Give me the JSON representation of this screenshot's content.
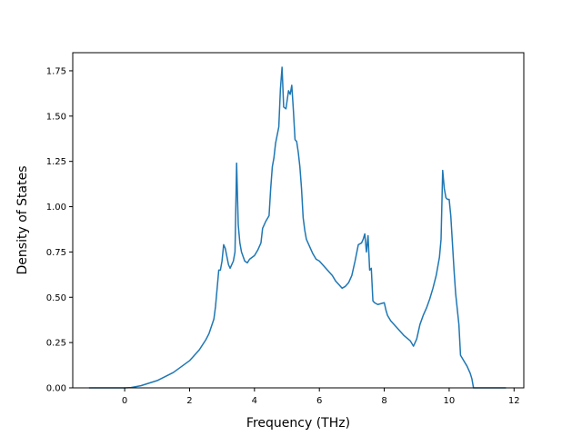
{
  "chart_data": {
    "type": "line",
    "title": "",
    "xlabel": "Frequency (THz)",
    "ylabel": "Density of States",
    "xlim": [
      -1.6,
      12.3
    ],
    "ylim": [
      0.0,
      1.85
    ],
    "xticks": [
      0,
      2,
      4,
      6,
      8,
      10,
      12
    ],
    "xtick_labels": [
      "0",
      "2",
      "4",
      "6",
      "8",
      "10",
      "12"
    ],
    "yticks": [
      0.0,
      0.25,
      0.5,
      0.75,
      1.0,
      1.25,
      1.5,
      1.75
    ],
    "ytick_labels": [
      "0.00",
      "0.25",
      "0.50",
      "0.75",
      "1.00",
      "1.25",
      "1.50",
      "1.75"
    ],
    "grid": false,
    "legend": false,
    "series": [
      {
        "color": "#1f77b4",
        "points": [
          [
            -1.1,
            0.0
          ],
          [
            0.0,
            0.0
          ],
          [
            0.2,
            0.002
          ],
          [
            0.5,
            0.012
          ],
          [
            1.0,
            0.04
          ],
          [
            1.5,
            0.085
          ],
          [
            2.0,
            0.15
          ],
          [
            2.3,
            0.21
          ],
          [
            2.5,
            0.265
          ],
          [
            2.6,
            0.3
          ],
          [
            2.75,
            0.38
          ],
          [
            2.8,
            0.45
          ],
          [
            2.85,
            0.55
          ],
          [
            2.9,
            0.65
          ],
          [
            2.95,
            0.65
          ],
          [
            3.0,
            0.7
          ],
          [
            3.05,
            0.79
          ],
          [
            3.1,
            0.77
          ],
          [
            3.2,
            0.68
          ],
          [
            3.25,
            0.66
          ],
          [
            3.35,
            0.7
          ],
          [
            3.4,
            0.75
          ],
          [
            3.45,
            1.24
          ],
          [
            3.5,
            0.9
          ],
          [
            3.55,
            0.8
          ],
          [
            3.6,
            0.75
          ],
          [
            3.7,
            0.7
          ],
          [
            3.78,
            0.69
          ],
          [
            3.85,
            0.71
          ],
          [
            4.0,
            0.73
          ],
          [
            4.1,
            0.76
          ],
          [
            4.15,
            0.78
          ],
          [
            4.2,
            0.8
          ],
          [
            4.25,
            0.88
          ],
          [
            4.35,
            0.92
          ],
          [
            4.45,
            0.95
          ],
          [
            4.5,
            1.1
          ],
          [
            4.55,
            1.22
          ],
          [
            4.6,
            1.27
          ],
          [
            4.65,
            1.35
          ],
          [
            4.75,
            1.44
          ],
          [
            4.8,
            1.65
          ],
          [
            4.85,
            1.77
          ],
          [
            4.9,
            1.55
          ],
          [
            4.97,
            1.54
          ],
          [
            5.05,
            1.64
          ],
          [
            5.1,
            1.62
          ],
          [
            5.15,
            1.67
          ],
          [
            5.2,
            1.53
          ],
          [
            5.25,
            1.37
          ],
          [
            5.3,
            1.36
          ],
          [
            5.35,
            1.3
          ],
          [
            5.4,
            1.22
          ],
          [
            5.45,
            1.1
          ],
          [
            5.5,
            0.94
          ],
          [
            5.55,
            0.87
          ],
          [
            5.6,
            0.82
          ],
          [
            5.7,
            0.78
          ],
          [
            5.8,
            0.74
          ],
          [
            5.9,
            0.71
          ],
          [
            6.0,
            0.7
          ],
          [
            6.2,
            0.66
          ],
          [
            6.4,
            0.62
          ],
          [
            6.5,
            0.59
          ],
          [
            6.6,
            0.57
          ],
          [
            6.7,
            0.55
          ],
          [
            6.8,
            0.56
          ],
          [
            6.9,
            0.58
          ],
          [
            7.0,
            0.62
          ],
          [
            7.1,
            0.7
          ],
          [
            7.2,
            0.79
          ],
          [
            7.3,
            0.8
          ],
          [
            7.35,
            0.82
          ],
          [
            7.4,
            0.85
          ],
          [
            7.45,
            0.75
          ],
          [
            7.5,
            0.84
          ],
          [
            7.55,
            0.65
          ],
          [
            7.6,
            0.66
          ],
          [
            7.65,
            0.48
          ],
          [
            7.7,
            0.47
          ],
          [
            7.8,
            0.46
          ],
          [
            8.0,
            0.47
          ],
          [
            8.05,
            0.43
          ],
          [
            8.1,
            0.4
          ],
          [
            8.2,
            0.37
          ],
          [
            8.4,
            0.33
          ],
          [
            8.6,
            0.29
          ],
          [
            8.8,
            0.26
          ],
          [
            8.9,
            0.23
          ],
          [
            9.0,
            0.27
          ],
          [
            9.1,
            0.35
          ],
          [
            9.2,
            0.4
          ],
          [
            9.3,
            0.44
          ],
          [
            9.4,
            0.49
          ],
          [
            9.5,
            0.55
          ],
          [
            9.6,
            0.62
          ],
          [
            9.7,
            0.72
          ],
          [
            9.75,
            0.82
          ],
          [
            9.8,
            1.2
          ],
          [
            9.85,
            1.1
          ],
          [
            9.9,
            1.05
          ],
          [
            9.95,
            1.04
          ],
          [
            10.0,
            1.04
          ],
          [
            10.05,
            0.95
          ],
          [
            10.1,
            0.8
          ],
          [
            10.15,
            0.65
          ],
          [
            10.2,
            0.52
          ],
          [
            10.3,
            0.35
          ],
          [
            10.35,
            0.18
          ],
          [
            10.45,
            0.15
          ],
          [
            10.55,
            0.12
          ],
          [
            10.65,
            0.08
          ],
          [
            10.7,
            0.05
          ],
          [
            10.75,
            0.0
          ],
          [
            11.75,
            0.0
          ]
        ]
      }
    ]
  }
}
